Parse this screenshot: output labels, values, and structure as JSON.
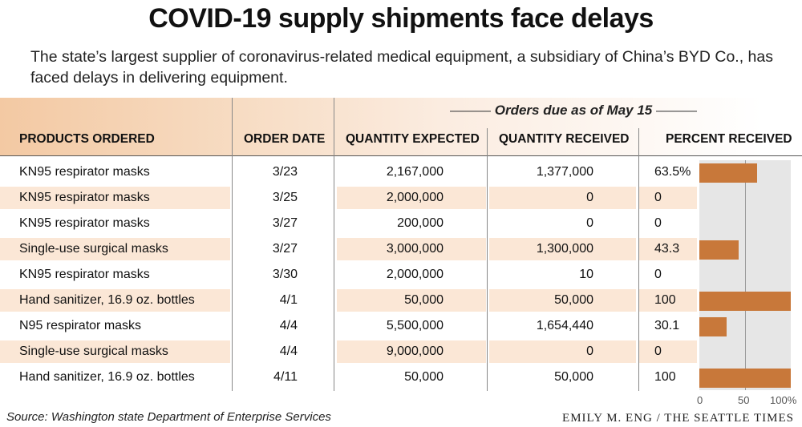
{
  "title": "COVID-19 supply shipments face delays",
  "subtitle": "The state’s largest supplier of coronavirus-related medical equipment, a subsidiary of China’s BYD Co., has faced delays in delivering equipment.",
  "orders_due": "Orders due as of  May 15",
  "columns": {
    "product": "PRODUCTS ORDERED",
    "date": "ORDER DATE",
    "expected": "QUANTITY EXPECTED",
    "received": "QUANTITY RECEIVED",
    "percent": "PERCENT RECEIVED"
  },
  "rows": [
    {
      "product": "KN95 respirator masks",
      "date": "3/23",
      "expected": "2,167,000",
      "received": "1,377,000",
      "percent_label": "63.5%"
    },
    {
      "product": "KN95 respirator masks",
      "date": "3/25",
      "expected": "2,000,000",
      "received": "0",
      "percent_label": "0"
    },
    {
      "product": "KN95 respirator masks",
      "date": "3/27",
      "expected": "200,000",
      "received": "0",
      "percent_label": "0"
    },
    {
      "product": "Single-use surgical masks",
      "date": "3/27",
      "expected": "3,000,000",
      "received": "1,300,000",
      "percent_label": "43.3"
    },
    {
      "product": "KN95 respirator masks",
      "date": "3/30",
      "expected": "2,000,000",
      "received": "10",
      "percent_label": "0"
    },
    {
      "product": "Hand sanitizer, 16.9 oz. bottles",
      "date": "4/1",
      "expected": "50,000",
      "received": "50,000",
      "percent_label": "100"
    },
    {
      "product": "N95 respirator masks",
      "date": "4/4",
      "expected": "5,500,000",
      "received": "1,654,440",
      "percent_label": "30.1"
    },
    {
      "product": "Single-use surgical masks",
      "date": "4/4",
      "expected": "9,000,000",
      "received": "0",
      "percent_label": "0"
    },
    {
      "product": "Hand sanitizer, 16.9 oz. bottles",
      "date": "4/11",
      "expected": "50,000",
      "received": "50,000",
      "percent_label": "100"
    }
  ],
  "chart_data": {
    "type": "bar",
    "categories": [
      "3/23",
      "3/25",
      "3/27",
      "3/27",
      "3/30",
      "4/1",
      "4/4",
      "4/4",
      "4/11"
    ],
    "values": [
      63.5,
      0,
      0,
      43.3,
      0,
      100,
      30.1,
      0,
      100
    ],
    "title": "",
    "xlabel": "",
    "ylabel": "",
    "xlim": [
      0,
      100
    ],
    "ticks": [
      "0",
      "50",
      "100%"
    ],
    "bar_color": "#c8783a",
    "background_color": "#e6e6e6"
  },
  "source": "Source: Washington state Department of Enterprise Services",
  "credit": "EMILY M. ENG / THE SEATTLE TIMES",
  "colors": {
    "header_gradient_start": "#f3c9a3",
    "row_band": "#fbe7d6",
    "bar": "#c8783a"
  }
}
